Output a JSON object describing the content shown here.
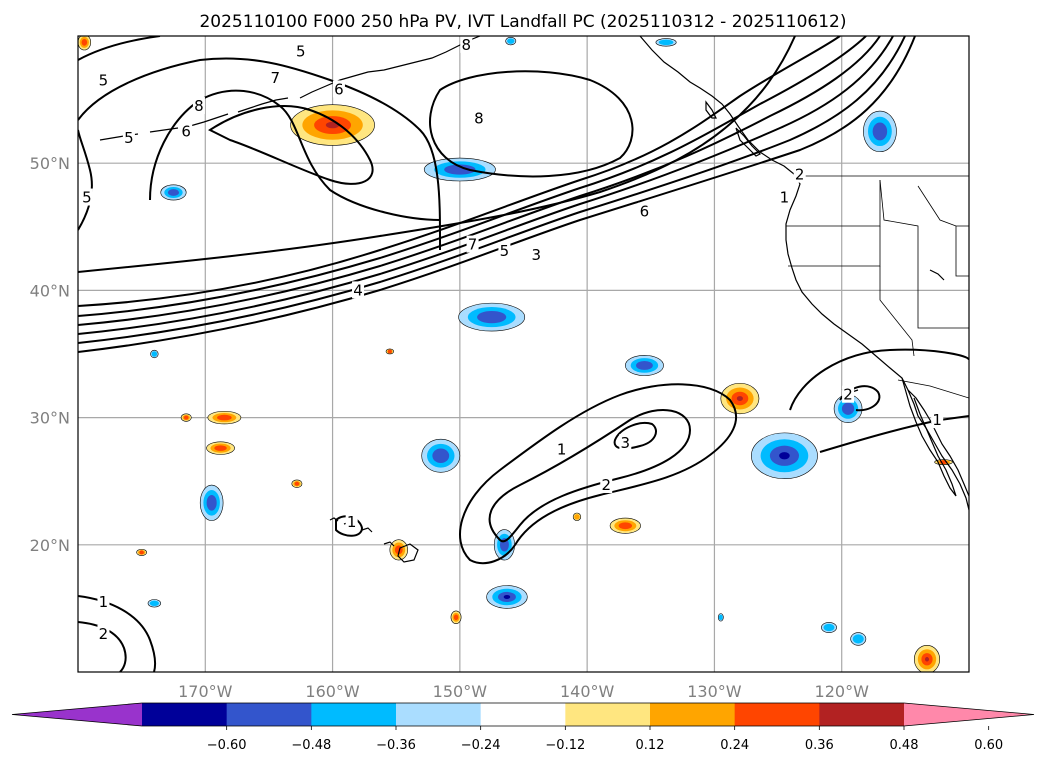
{
  "title": "2025110100 F000 250 hPa PV, IVT Landfall PC (2025110312 - 2025110612)",
  "map": {
    "lon_range": [
      -180,
      -110
    ],
    "lat_range": [
      10,
      60
    ],
    "lon_ticks": [
      {
        "lon": -170,
        "label": "170°W"
      },
      {
        "lon": -160,
        "label": "160°W"
      },
      {
        "lon": -150,
        "label": "150°W"
      },
      {
        "lon": -140,
        "label": "140°W"
      },
      {
        "lon": -130,
        "label": "130°W"
      },
      {
        "lon": -120,
        "label": "120°W"
      }
    ],
    "lat_ticks": [
      {
        "lat": 20,
        "label": "20°N"
      },
      {
        "lat": 30,
        "label": "30°N"
      },
      {
        "lat": 40,
        "label": "40°N"
      },
      {
        "lat": 50,
        "label": "50°N"
      }
    ],
    "grid": true
  },
  "colorbar": {
    "colors": [
      "#9933cc",
      "#000099",
      "#3355cc",
      "#00bbff",
      "#aaddff",
      "#ffffff",
      "#ffe680",
      "#ffa500",
      "#ff4500",
      "#b22222",
      "#ff88aa"
    ],
    "ticks": [
      "−0.60",
      "−0.48",
      "−0.36",
      "−0.24",
      "−0.12",
      "0.12",
      "0.24",
      "0.36",
      "0.48",
      "0.60"
    ],
    "extend": "both"
  },
  "contour_labels": [
    {
      "text": "5",
      "lon": -178,
      "lat": 56.5
    },
    {
      "text": "8",
      "lon": -170.5,
      "lat": 54.5
    },
    {
      "text": "6",
      "lon": -171.5,
      "lat": 52.5
    },
    {
      "text": "5",
      "lon": -176,
      "lat": 52
    },
    {
      "text": "5",
      "lon": -179.3,
      "lat": 47.3
    },
    {
      "text": "7",
      "lon": -164.5,
      "lat": 56.7
    },
    {
      "text": "6",
      "lon": -159.5,
      "lat": 55.8
    },
    {
      "text": "5",
      "lon": -162.5,
      "lat": 58.8
    },
    {
      "text": "8",
      "lon": -148.5,
      "lat": 53.5
    },
    {
      "text": "8",
      "lon": -149.5,
      "lat": 59.3
    },
    {
      "text": "6",
      "lon": -135.5,
      "lat": 46.2
    },
    {
      "text": "7",
      "lon": -149,
      "lat": 43.6
    },
    {
      "text": "5",
      "lon": -146.5,
      "lat": 43.1
    },
    {
      "text": "3",
      "lon": -144,
      "lat": 42.8
    },
    {
      "text": "4",
      "lon": -158,
      "lat": 40
    },
    {
      "text": "2",
      "lon": -123.3,
      "lat": 49.1
    },
    {
      "text": "1",
      "lon": -124.5,
      "lat": 47.3
    },
    {
      "text": "2",
      "lon": -119.5,
      "lat": 31.8
    },
    {
      "text": "1",
      "lon": -112.5,
      "lat": 29.8
    },
    {
      "text": "1",
      "lon": -142,
      "lat": 27.5
    },
    {
      "text": "3",
      "lon": -137,
      "lat": 28
    },
    {
      "text": "2",
      "lon": -138.5,
      "lat": 24.7
    },
    {
      "text": "1",
      "lon": -158.5,
      "lat": 21.8
    },
    {
      "text": "1",
      "lon": -178,
      "lat": 15.5
    },
    {
      "text": "2",
      "lon": -178,
      "lat": 13
    }
  ],
  "pv_blobs": [
    {
      "lon": -179.5,
      "lat": 59.5,
      "rx": 0.5,
      "ry": 0.6,
      "sign": 1,
      "level": 2
    },
    {
      "lon": -160,
      "lat": 53,
      "rx": 3.3,
      "ry": 1.6,
      "sign": 1,
      "level": 3
    },
    {
      "lon": -172.5,
      "lat": 47.7,
      "rx": 1.0,
      "ry": 0.6,
      "sign": -1,
      "level": 2
    },
    {
      "lon": -150,
      "lat": 49.5,
      "rx": 2.8,
      "ry": 0.9,
      "sign": -1,
      "level": 2
    },
    {
      "lon": -147.5,
      "lat": 37.9,
      "rx": 2.6,
      "ry": 1.1,
      "sign": -1,
      "level": 2
    },
    {
      "lon": -146,
      "lat": 59.6,
      "rx": 0.4,
      "ry": 0.3,
      "sign": -1,
      "level": 1
    },
    {
      "lon": -133.8,
      "lat": 59.5,
      "rx": 0.8,
      "ry": 0.3,
      "sign": -1,
      "level": 1
    },
    {
      "lon": -117,
      "lat": 52.5,
      "rx": 1.3,
      "ry": 1.6,
      "sign": -1,
      "level": 2
    },
    {
      "lon": -174,
      "lat": 35,
      "rx": 0.3,
      "ry": 0.3,
      "sign": -1,
      "level": 1
    },
    {
      "lon": -155.5,
      "lat": 35.2,
      "rx": 0.3,
      "ry": 0.2,
      "sign": 1,
      "level": 2
    },
    {
      "lon": -135.5,
      "lat": 34.1,
      "rx": 1.5,
      "ry": 0.8,
      "sign": -1,
      "level": 2
    },
    {
      "lon": -128,
      "lat": 31.5,
      "rx": 1.5,
      "ry": 1.2,
      "sign": 1,
      "level": 3
    },
    {
      "lon": -119.5,
      "lat": 30.7,
      "rx": 1.1,
      "ry": 1.1,
      "sign": -1,
      "level": 2
    },
    {
      "lon": -124.5,
      "lat": 27,
      "rx": 2.6,
      "ry": 1.8,
      "sign": -1,
      "level": 3
    },
    {
      "lon": -168.5,
      "lat": 30,
      "rx": 1.3,
      "ry": 0.5,
      "sign": 1,
      "level": 2
    },
    {
      "lon": -168.8,
      "lat": 27.6,
      "rx": 1.1,
      "ry": 0.5,
      "sign": 1,
      "level": 2
    },
    {
      "lon": -171.5,
      "lat": 30,
      "rx": 0.4,
      "ry": 0.3,
      "sign": 1,
      "level": 2
    },
    {
      "lon": -151.5,
      "lat": 27,
      "rx": 1.5,
      "ry": 1.3,
      "sign": -1,
      "level": 2
    },
    {
      "lon": -169.5,
      "lat": 23.3,
      "rx": 0.9,
      "ry": 1.4,
      "sign": -1,
      "level": 2
    },
    {
      "lon": -162.8,
      "lat": 24.8,
      "rx": 0.4,
      "ry": 0.3,
      "sign": 1,
      "level": 2
    },
    {
      "lon": -140.8,
      "lat": 22.2,
      "rx": 0.3,
      "ry": 0.3,
      "sign": 1,
      "level": 1
    },
    {
      "lon": -137,
      "lat": 21.5,
      "rx": 1.2,
      "ry": 0.6,
      "sign": 1,
      "level": 2
    },
    {
      "lon": -146.5,
      "lat": 20,
      "rx": 0.8,
      "ry": 1.2,
      "sign": -1,
      "level": 2
    },
    {
      "lon": -154.8,
      "lat": 19.6,
      "rx": 0.7,
      "ry": 0.8,
      "sign": 1,
      "level": 2
    },
    {
      "lon": -175,
      "lat": 19.4,
      "rx": 0.4,
      "ry": 0.25,
      "sign": 1,
      "level": 2
    },
    {
      "lon": -146.3,
      "lat": 15.9,
      "rx": 1.6,
      "ry": 0.9,
      "sign": -1,
      "level": 3
    },
    {
      "lon": -150.3,
      "lat": 14.3,
      "rx": 0.4,
      "ry": 0.5,
      "sign": 1,
      "level": 2
    },
    {
      "lon": -174,
      "lat": 15.4,
      "rx": 0.5,
      "ry": 0.3,
      "sign": -1,
      "level": 1
    },
    {
      "lon": -129.5,
      "lat": 14.3,
      "rx": 0.2,
      "ry": 0.3,
      "sign": -1,
      "level": 1
    },
    {
      "lon": -121,
      "lat": 13.5,
      "rx": 0.6,
      "ry": 0.4,
      "sign": -1,
      "level": 1
    },
    {
      "lon": -118.7,
      "lat": 12.6,
      "rx": 0.6,
      "ry": 0.5,
      "sign": -1,
      "level": 1
    },
    {
      "lon": -113.3,
      "lat": 11,
      "rx": 1.0,
      "ry": 1.1,
      "sign": 1,
      "level": 3
    },
    {
      "lon": -112,
      "lat": 26.5,
      "rx": 0.7,
      "ry": 0.2,
      "sign": 1,
      "level": 2
    }
  ]
}
